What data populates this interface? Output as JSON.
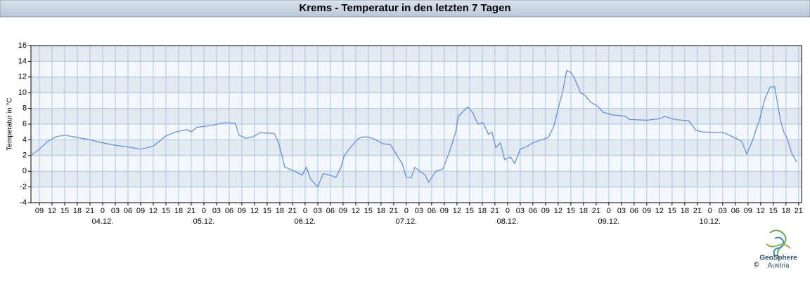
{
  "title": "Krems - Temperatur in den letzten 7 Tagen",
  "chart_data": {
    "type": "line",
    "y_label": "Temperatur in °C",
    "color": "#5b8bd8",
    "grid": true,
    "x": [
      -17,
      -15,
      -13,
      -11,
      -9,
      -6,
      -3,
      0,
      3,
      6,
      9,
      12,
      15,
      17.3,
      20,
      21,
      22.3,
      25.7,
      29,
      31.5,
      32.3,
      34,
      35.7,
      37.3,
      40.7,
      41.8,
      43.2,
      44.8,
      47.3,
      48.3,
      49.3,
      51,
      52.3,
      54,
      55.3,
      56.5,
      57.3,
      59,
      60.7,
      62.3,
      64,
      66.5,
      68.2,
      69.8,
      71,
      72,
      73.2,
      74,
      75.2,
      76.5,
      77.3,
      79,
      80.7,
      82.3,
      83.7,
      84.3,
      85.3,
      86.5,
      87.7,
      89,
      90.2,
      91.5,
      92.3,
      93.2,
      94.3,
      95.3,
      96.7,
      97.7,
      99,
      100.7,
      102.3,
      104,
      105.7,
      107,
      108,
      109,
      110,
      111,
      112,
      113.3,
      114.3,
      115.7,
      117.3,
      118.7,
      120.7,
      124,
      124.8,
      129,
      132.3,
      133.2,
      135.7,
      139,
      140.7,
      142.3,
      147.3,
      149,
      151.5,
      152.7,
      154,
      155.7,
      157,
      158.2,
      159.3,
      160.7,
      161.5,
      162.3,
      163.3,
      164.5
    ],
    "values": [
      2.0,
      2.8,
      3.8,
      4.4,
      4.6,
      4.3,
      4.0,
      3.6,
      3.3,
      3.1,
      2.8,
      3.2,
      4.5,
      5.0,
      5.3,
      5.0,
      5.6,
      5.8,
      6.2,
      6.1,
      4.6,
      4.2,
      4.4,
      4.9,
      4.8,
      3.5,
      0.5,
      0.2,
      -0.5,
      0.5,
      -1.0,
      -2.0,
      -0.3,
      -0.5,
      -0.8,
      0.5,
      2.0,
      3.2,
      4.2,
      4.4,
      4.2,
      3.5,
      3.4,
      2.0,
      1.0,
      -0.8,
      -0.8,
      0.5,
      0.0,
      -0.5,
      -1.4,
      0.0,
      0.3,
      2.6,
      5.0,
      7.0,
      7.5,
      8.2,
      7.5,
      6.0,
      6.2,
      4.7,
      5.0,
      3.0,
      3.6,
      1.5,
      1.8,
      1.0,
      2.8,
      3.2,
      3.7,
      4.0,
      4.3,
      5.8,
      8.0,
      10.0,
      12.8,
      12.6,
      11.7,
      10.0,
      9.7,
      8.8,
      8.3,
      7.5,
      7.2,
      7.0,
      6.6,
      6.5,
      6.7,
      7.0,
      6.6,
      6.4,
      5.2,
      5.0,
      4.9,
      4.5,
      3.8,
      2.2,
      3.8,
      6.5,
      9.2,
      10.7,
      10.8,
      6.5,
      5.0,
      4.2,
      2.4,
      1.2
    ],
    "xlim": [
      -17,
      165.7
    ],
    "ylim": [
      -4,
      16
    ],
    "yticks": [
      -4,
      -2,
      0,
      2,
      4,
      6,
      8,
      10,
      12,
      14,
      16
    ],
    "xticks": [
      {
        "value": -15,
        "label": "09"
      },
      {
        "value": -12,
        "label": "12"
      },
      {
        "value": -9,
        "label": "15"
      },
      {
        "value": -6,
        "label": "18"
      },
      {
        "value": -3,
        "label": "21"
      },
      {
        "value": 0,
        "label": "0"
      },
      {
        "value": 3,
        "label": "03"
      },
      {
        "value": 6,
        "label": "06"
      },
      {
        "value": 9,
        "label": "09"
      },
      {
        "value": 12,
        "label": "12"
      },
      {
        "value": 15,
        "label": "15"
      },
      {
        "value": 18,
        "label": "18"
      },
      {
        "value": 21,
        "label": "21"
      },
      {
        "value": 24,
        "label": "0"
      },
      {
        "value": 27,
        "label": "03"
      },
      {
        "value": 30,
        "label": "06"
      },
      {
        "value": 33,
        "label": "09"
      },
      {
        "value": 36,
        "label": "12"
      },
      {
        "value": 39,
        "label": "15"
      },
      {
        "value": 42,
        "label": "18"
      },
      {
        "value": 45,
        "label": "21"
      },
      {
        "value": 48,
        "label": "0"
      },
      {
        "value": 51,
        "label": "03"
      },
      {
        "value": 54,
        "label": "06"
      },
      {
        "value": 57,
        "label": "09"
      },
      {
        "value": 60,
        "label": "12"
      },
      {
        "value": 63,
        "label": "15"
      },
      {
        "value": 66,
        "label": "18"
      },
      {
        "value": 69,
        "label": "21"
      },
      {
        "value": 72,
        "label": "0"
      },
      {
        "value": 75,
        "label": "03"
      },
      {
        "value": 78,
        "label": "06"
      },
      {
        "value": 81,
        "label": "09"
      },
      {
        "value": 84,
        "label": "12"
      },
      {
        "value": 87,
        "label": "15"
      },
      {
        "value": 90,
        "label": "18"
      },
      {
        "value": 93,
        "label": "21"
      },
      {
        "value": 96,
        "label": "0"
      },
      {
        "value": 99,
        "label": "03"
      },
      {
        "value": 102,
        "label": "06"
      },
      {
        "value": 105,
        "label": "09"
      },
      {
        "value": 108,
        "label": "12"
      },
      {
        "value": 111,
        "label": "15"
      },
      {
        "value": 114,
        "label": "18"
      },
      {
        "value": 117,
        "label": "21"
      },
      {
        "value": 120,
        "label": "0"
      },
      {
        "value": 123,
        "label": "03"
      },
      {
        "value": 126,
        "label": "06"
      },
      {
        "value": 129,
        "label": "09"
      },
      {
        "value": 132,
        "label": "12"
      },
      {
        "value": 135,
        "label": "15"
      },
      {
        "value": 138,
        "label": "18"
      },
      {
        "value": 141,
        "label": "21"
      },
      {
        "value": 144,
        "label": "0"
      },
      {
        "value": 147,
        "label": "03"
      },
      {
        "value": 150,
        "label": "06"
      },
      {
        "value": 153,
        "label": "09"
      },
      {
        "value": 156,
        "label": "12"
      },
      {
        "value": 159,
        "label": "15"
      },
      {
        "value": 162,
        "label": "18"
      },
      {
        "value": 165,
        "label": "21"
      }
    ],
    "day_labels": [
      {
        "value": 0,
        "label": "04.12."
      },
      {
        "value": 24,
        "label": "05.12."
      },
      {
        "value": 48,
        "label": "06.12."
      },
      {
        "value": 72,
        "label": "07.12."
      },
      {
        "value": 96,
        "label": "08.12."
      },
      {
        "value": 120,
        "label": "09.12."
      },
      {
        "value": 144,
        "label": "10.12."
      }
    ]
  },
  "logo": {
    "name": "GeoSphere",
    "sub": "Austria",
    "copyright": "©"
  }
}
